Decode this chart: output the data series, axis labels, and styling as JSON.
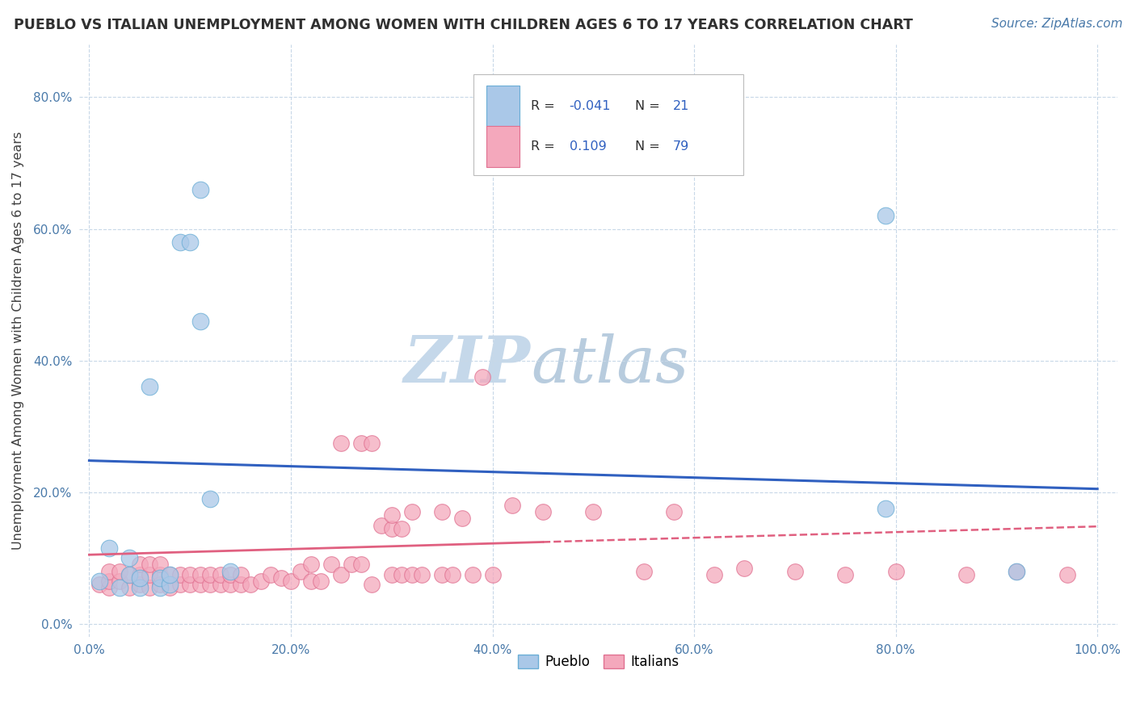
{
  "title": "PUEBLO VS ITALIAN UNEMPLOYMENT AMONG WOMEN WITH CHILDREN AGES 6 TO 17 YEARS CORRELATION CHART",
  "source": "Source: ZipAtlas.com",
  "ylabel": "Unemployment Among Women with Children Ages 6 to 17 years",
  "xlim": [
    -0.01,
    1.02
  ],
  "ylim": [
    -0.02,
    0.88
  ],
  "xtick_labels": [
    "0.0%",
    "20.0%",
    "40.0%",
    "60.0%",
    "80.0%",
    "100.0%"
  ],
  "xtick_vals": [
    0.0,
    0.2,
    0.4,
    0.6,
    0.8,
    1.0
  ],
  "ytick_labels": [
    "0.0%",
    "20.0%",
    "40.0%",
    "60.0%",
    "80.0%"
  ],
  "ytick_vals": [
    0.0,
    0.2,
    0.4,
    0.6,
    0.8
  ],
  "pueblo_color": "#aac8e8",
  "pueblo_edge": "#6aaed6",
  "italian_color": "#f4a8bc",
  "italian_edge": "#e07090",
  "trend_pueblo_color": "#3060c0",
  "trend_italian_color": "#e06080",
  "pueblo_R": -0.041,
  "pueblo_N": 21,
  "italian_R": 0.109,
  "italian_N": 79,
  "pueblo_x": [
    0.01,
    0.02,
    0.03,
    0.04,
    0.04,
    0.05,
    0.05,
    0.06,
    0.07,
    0.07,
    0.08,
    0.08,
    0.09,
    0.1,
    0.11,
    0.11,
    0.12,
    0.14,
    0.79,
    0.79,
    0.92
  ],
  "pueblo_y": [
    0.065,
    0.115,
    0.055,
    0.075,
    0.1,
    0.055,
    0.07,
    0.36,
    0.055,
    0.07,
    0.06,
    0.075,
    0.58,
    0.58,
    0.46,
    0.66,
    0.19,
    0.08,
    0.175,
    0.62,
    0.08
  ],
  "italian_x": [
    0.01,
    0.02,
    0.02,
    0.02,
    0.03,
    0.03,
    0.04,
    0.04,
    0.05,
    0.05,
    0.05,
    0.06,
    0.06,
    0.06,
    0.07,
    0.07,
    0.07,
    0.08,
    0.08,
    0.09,
    0.09,
    0.1,
    0.1,
    0.11,
    0.11,
    0.12,
    0.12,
    0.13,
    0.13,
    0.14,
    0.14,
    0.15,
    0.15,
    0.16,
    0.17,
    0.18,
    0.19,
    0.2,
    0.21,
    0.22,
    0.22,
    0.23,
    0.24,
    0.25,
    0.25,
    0.26,
    0.27,
    0.27,
    0.28,
    0.28,
    0.29,
    0.3,
    0.3,
    0.3,
    0.31,
    0.31,
    0.32,
    0.32,
    0.33,
    0.35,
    0.35,
    0.36,
    0.37,
    0.38,
    0.39,
    0.4,
    0.42,
    0.45,
    0.5,
    0.55,
    0.58,
    0.62,
    0.65,
    0.7,
    0.75,
    0.8,
    0.87,
    0.92,
    0.97
  ],
  "italian_y": [
    0.06,
    0.055,
    0.065,
    0.08,
    0.065,
    0.08,
    0.055,
    0.075,
    0.06,
    0.075,
    0.09,
    0.055,
    0.075,
    0.09,
    0.06,
    0.075,
    0.09,
    0.055,
    0.075,
    0.06,
    0.075,
    0.06,
    0.075,
    0.06,
    0.075,
    0.06,
    0.075,
    0.06,
    0.075,
    0.06,
    0.075,
    0.06,
    0.075,
    0.06,
    0.065,
    0.075,
    0.07,
    0.065,
    0.08,
    0.065,
    0.09,
    0.065,
    0.09,
    0.075,
    0.275,
    0.09,
    0.275,
    0.09,
    0.06,
    0.275,
    0.15,
    0.075,
    0.145,
    0.165,
    0.075,
    0.145,
    0.075,
    0.17,
    0.075,
    0.075,
    0.17,
    0.075,
    0.16,
    0.075,
    0.375,
    0.075,
    0.18,
    0.17,
    0.17,
    0.08,
    0.17,
    0.075,
    0.085,
    0.08,
    0.075,
    0.08,
    0.075,
    0.08,
    0.075
  ],
  "background_color": "#ffffff",
  "grid_color": "#c8d8e8",
  "watermark_zip": "ZIP",
  "watermark_atlas": "atlas",
  "watermark_color_zip": "#c5d8ea",
  "watermark_color_atlas": "#b8ccde",
  "trend_pueblo_start": 0.248,
  "trend_pueblo_end": 0.205,
  "trend_italian_start": 0.105,
  "trend_italian_end": 0.148,
  "trend_italian_dash_start": 0.148,
  "trend_italian_dash_end": 0.16
}
